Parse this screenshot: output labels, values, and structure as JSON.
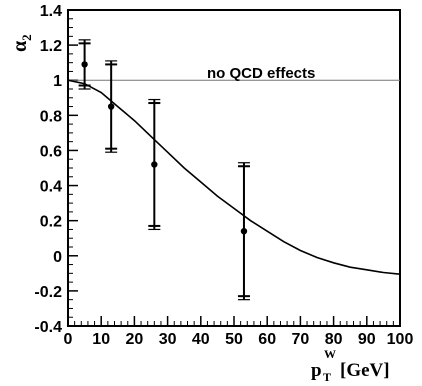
{
  "chart_data": {
    "type": "scatter",
    "title": "",
    "xlabel_main": "p",
    "xlabel_sub": "T",
    "xlabel_sup": "W",
    "xlabel_unit": "[GeV]",
    "ylabel_main": "α",
    "ylabel_sub": "2",
    "xlim": [
      0,
      100
    ],
    "ylim": [
      -0.4,
      1.4
    ],
    "grid": false,
    "x_ticks": [
      0,
      10,
      20,
      30,
      40,
      50,
      60,
      70,
      80,
      90,
      100
    ],
    "x_tick_labels": [
      "0",
      "10",
      "20",
      "30",
      "40",
      "50",
      "60",
      "70",
      "80",
      "90",
      "100"
    ],
    "y_ticks": [
      -0.4,
      -0.2,
      0,
      0.2,
      0.4,
      0.6,
      0.8,
      1,
      1.2,
      1.4
    ],
    "y_tick_labels": [
      "-0.4",
      "-0.2",
      "0",
      "0.2",
      "0.4",
      "0.6",
      "0.8",
      "1",
      "1.2",
      "1.4"
    ],
    "reference_line": {
      "y": 1,
      "label": "no QCD effects"
    },
    "series": [
      {
        "type": "points",
        "points": [
          {
            "x": 5,
            "y": 1.09,
            "err_stat": 0.12,
            "err_total": 0.14
          },
          {
            "x": 13,
            "y": 0.85,
            "err_stat": 0.24,
            "err_total": 0.26
          },
          {
            "x": 26,
            "y": 0.52,
            "err_stat": 0.35,
            "err_total": 0.37
          },
          {
            "x": 53,
            "y": 0.14,
            "err_stat": 0.37,
            "err_total": 0.39
          }
        ]
      },
      {
        "type": "curve",
        "x": [
          0,
          5,
          10,
          15,
          20,
          25,
          30,
          35,
          40,
          45,
          50,
          55,
          60,
          65,
          70,
          75,
          80,
          85,
          90,
          95,
          100
        ],
        "y": [
          1.0,
          0.98,
          0.93,
          0.85,
          0.77,
          0.68,
          0.59,
          0.5,
          0.42,
          0.34,
          0.27,
          0.2,
          0.14,
          0.08,
          0.03,
          -0.01,
          -0.04,
          -0.065,
          -0.08,
          -0.095,
          -0.105
        ]
      }
    ]
  }
}
